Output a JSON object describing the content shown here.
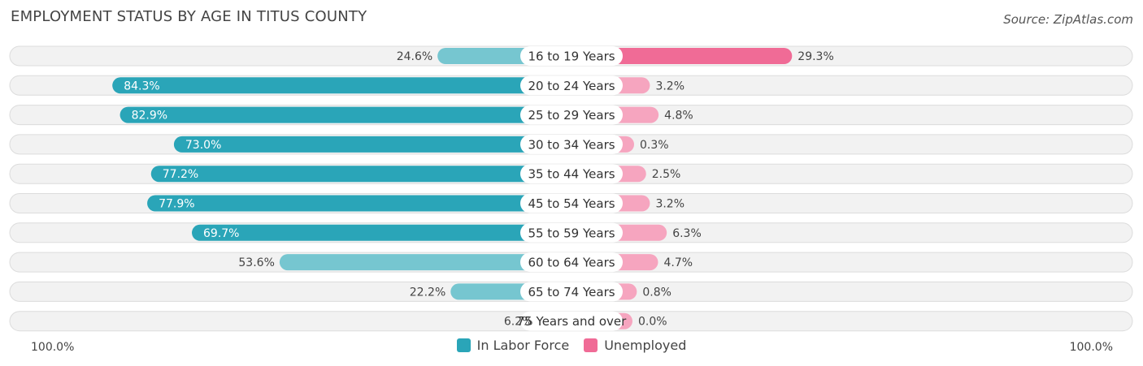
{
  "header": {
    "title": "EMPLOYMENT STATUS BY AGE IN TITUS COUNTY",
    "source": "Source: ZipAtlas.com"
  },
  "colors": {
    "labor_strong": "#2aa5b8",
    "labor_light": "#76c6d0",
    "unemployed_strong": "#f06b96",
    "unemployed_light": "#f6a5bf"
  },
  "chart_data": {
    "type": "bar",
    "orientation": "horizontal-diverging",
    "categories": [
      "16 to 19 Years",
      "20 to 24 Years",
      "25 to 29 Years",
      "30 to 34 Years",
      "35 to 44 Years",
      "45 to 54 Years",
      "55 to 59 Years",
      "60 to 64 Years",
      "65 to 74 Years",
      "75 Years and over"
    ],
    "series": [
      {
        "name": "In Labor Force",
        "values": [
          24.6,
          84.3,
          82.9,
          73.0,
          77.2,
          77.9,
          69.7,
          53.6,
          22.2,
          6.2
        ],
        "labels": [
          "24.6%",
          "84.3%",
          "82.9%",
          "73.0%",
          "77.2%",
          "77.9%",
          "69.7%",
          "53.6%",
          "22.2%",
          "6.2%"
        ]
      },
      {
        "name": "Unemployed",
        "values": [
          29.3,
          3.2,
          4.8,
          0.3,
          2.5,
          3.2,
          6.3,
          4.7,
          0.8,
          0.0
        ],
        "labels": [
          "29.3%",
          "3.2%",
          "4.8%",
          "0.3%",
          "2.5%",
          "3.2%",
          "6.3%",
          "4.7%",
          "0.8%",
          "0.0%"
        ]
      }
    ],
    "axis": {
      "left_label": "100.0%",
      "right_label": "100.0%",
      "range": [
        0,
        100
      ]
    },
    "legend_position": "bottom-center"
  }
}
